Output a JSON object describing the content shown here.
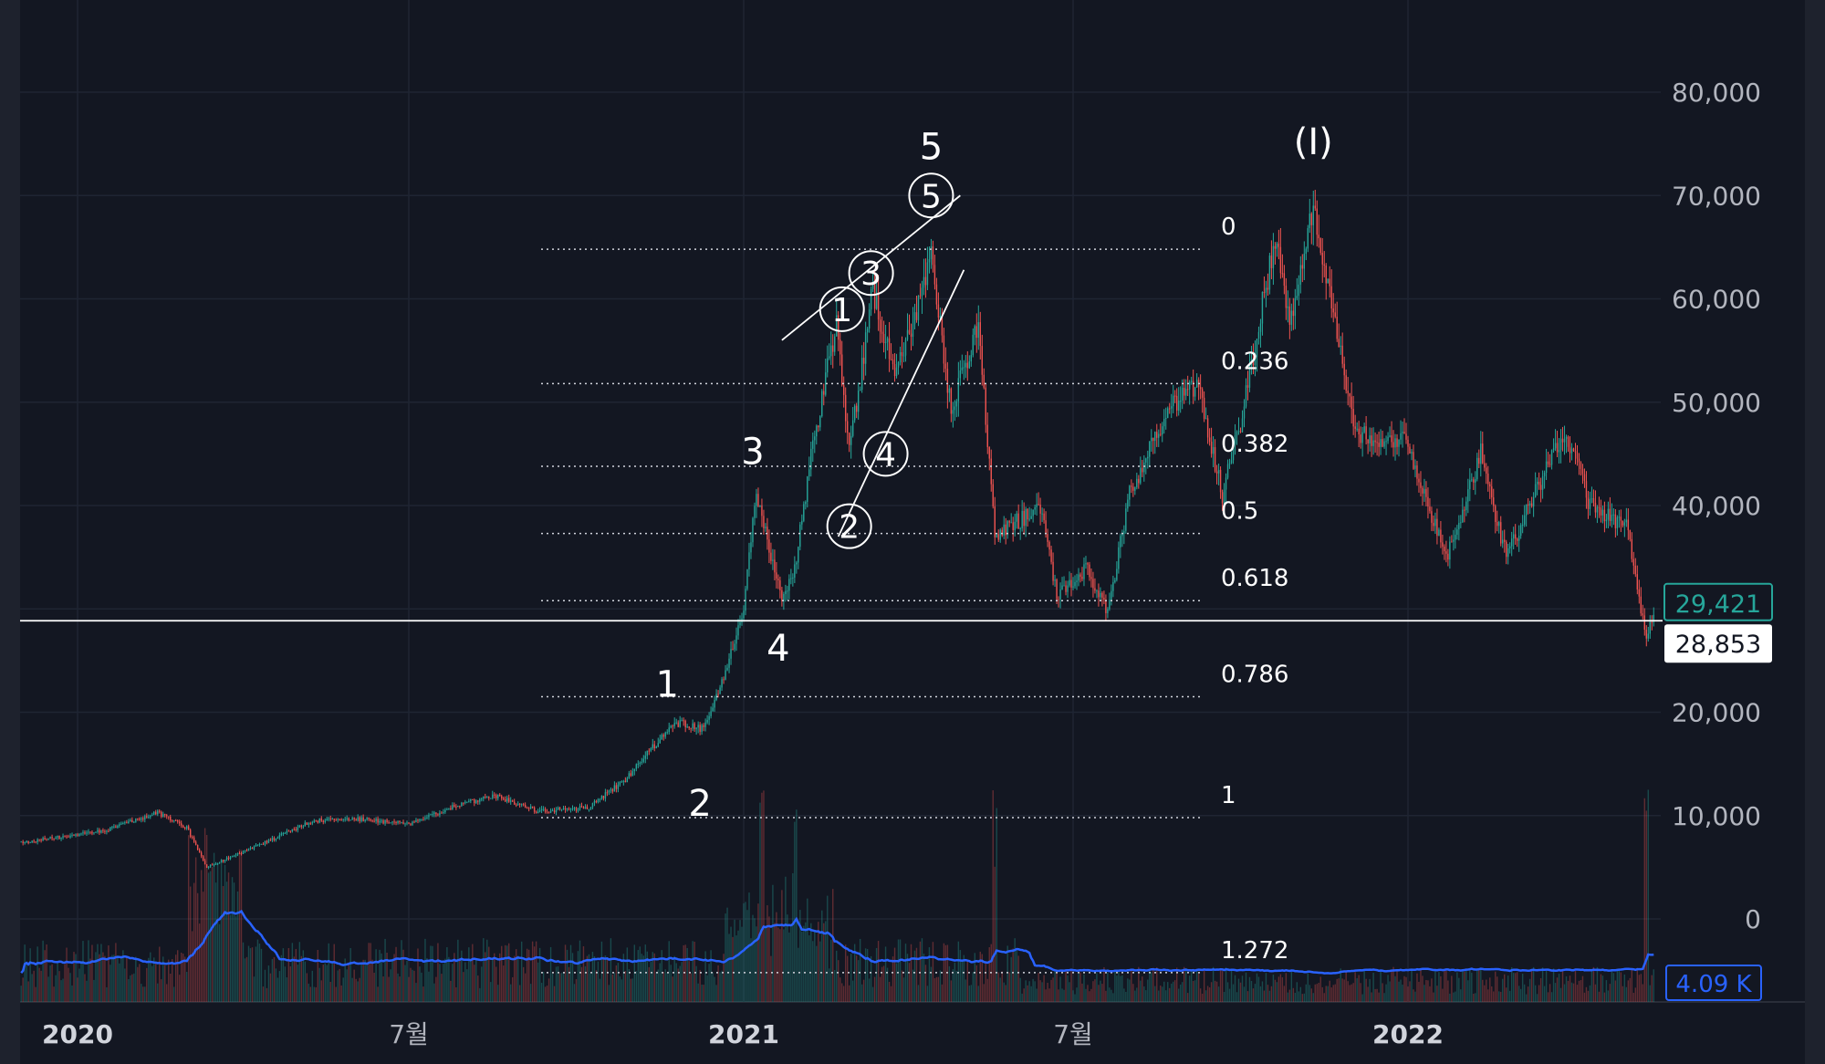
{
  "chart_data": {
    "type": "candlestick",
    "title": "",
    "xlabel": "",
    "ylabel": "",
    "ylim": [
      0,
      80000
    ],
    "grid": true,
    "y_ticks": [
      "80,000",
      "70,000",
      "60,000",
      "50,000",
      "40,000",
      "20,000",
      "10,000",
      "0"
    ],
    "y_tick_values": [
      80000,
      70000,
      60000,
      50000,
      40000,
      20000,
      10000,
      0
    ],
    "x_ticks": [
      {
        "label": "2020",
        "date": "2020-01-01",
        "bold": true
      },
      {
        "label": "7월",
        "date": "2020-07-01",
        "bold": false
      },
      {
        "label": "2021",
        "date": "2021-01-01",
        "bold": true
      },
      {
        "label": "7월",
        "date": "2021-07-01",
        "bold": false
      },
      {
        "label": "2022",
        "date": "2022-01-01",
        "bold": true
      }
    ],
    "price_path": [
      [
        "2019-12-01",
        7400
      ],
      [
        "2020-01-15",
        8500
      ],
      [
        "2020-02-14",
        10300
      ],
      [
        "2020-03-01",
        8800
      ],
      [
        "2020-03-12",
        5000
      ],
      [
        "2020-04-05",
        6800
      ],
      [
        "2020-05-10",
        9500
      ],
      [
        "2020-06-01",
        9700
      ],
      [
        "2020-07-01",
        9200
      ],
      [
        "2020-07-28",
        11000
      ],
      [
        "2020-08-17",
        12000
      ],
      [
        "2020-09-10",
        10400
      ],
      [
        "2020-10-08",
        10800
      ],
      [
        "2020-10-28",
        13500
      ],
      [
        "2020-11-24",
        19000
      ],
      [
        "2020-12-10",
        18300
      ],
      [
        "2020-12-20",
        23000
      ],
      [
        "2020-12-31",
        29000
      ],
      [
        "2021-01-08",
        41000
      ],
      [
        "2021-01-22",
        31000
      ],
      [
        "2021-01-29",
        34000
      ],
      [
        "2021-02-08",
        46000
      ],
      [
        "2021-02-21",
        57500
      ],
      [
        "2021-02-28",
        45000
      ],
      [
        "2021-03-13",
        61000
      ],
      [
        "2021-03-25",
        52000
      ],
      [
        "2021-04-14",
        64000
      ],
      [
        "2021-04-25",
        49000
      ],
      [
        "2021-05-10",
        58000
      ],
      [
        "2021-05-19",
        37000
      ],
      [
        "2021-06-14",
        40000
      ],
      [
        "2021-06-22",
        31000
      ],
      [
        "2021-07-08",
        34000
      ],
      [
        "2021-07-20",
        29800
      ],
      [
        "2021-08-01",
        41000
      ],
      [
        "2021-08-22",
        49500
      ],
      [
        "2021-09-07",
        52000
      ],
      [
        "2021-09-21",
        41000
      ],
      [
        "2021-10-01",
        48000
      ],
      [
        "2021-10-20",
        66000
      ],
      [
        "2021-10-28",
        58000
      ],
      [
        "2021-11-10",
        69000
      ],
      [
        "2021-11-26",
        53500
      ],
      [
        "2021-12-04",
        47000
      ],
      [
        "2021-12-31",
        46300
      ],
      [
        "2022-01-22",
        35000
      ],
      [
        "2022-02-10",
        45000
      ],
      [
        "2022-02-24",
        35000
      ],
      [
        "2022-03-28",
        47500
      ],
      [
        "2022-04-11",
        40000
      ],
      [
        "2022-05-01",
        38000
      ],
      [
        "2022-05-09",
        30000
      ],
      [
        "2022-05-12",
        26800
      ],
      [
        "2022-05-16",
        29421
      ]
    ],
    "last_price": "29,421",
    "crosshair_price": "28,853",
    "crosshair_value": 28853,
    "volume_label": "4.09 K",
    "fibonacci": [
      {
        "label": "0",
        "price": 64800
      },
      {
        "label": "0.236",
        "price": 51800
      },
      {
        "label": "0.382",
        "price": 43800
      },
      {
        "label": "0.5",
        "price": 37300
      },
      {
        "label": "0.618",
        "price": 30800
      },
      {
        "label": "0.786",
        "price": 21500
      },
      {
        "label": "1",
        "price": 9800
      },
      {
        "label": "1.272",
        "price": -5200
      }
    ],
    "wave_labels": [
      {
        "text": "1",
        "date": "2020-11-20",
        "price": 21500
      },
      {
        "text": "2",
        "date": "2020-12-08",
        "price": 10000
      },
      {
        "text": "3",
        "date": "2021-01-06",
        "price": 44000
      },
      {
        "text": "4",
        "date": "2021-01-20",
        "price": 25000
      },
      {
        "text": "5",
        "date": "2021-04-14",
        "price": 73500
      },
      {
        "text": "(I)",
        "date": "2021-11-10",
        "price": 74000
      }
    ],
    "circled_labels": [
      {
        "text": "1",
        "date": "2021-02-24",
        "price": 59000
      },
      {
        "text": "2",
        "date": "2021-02-28",
        "price": 38000
      },
      {
        "text": "3",
        "date": "2021-03-12",
        "price": 62500
      },
      {
        "text": "4",
        "date": "2021-03-20",
        "price": 45000
      },
      {
        "text": "5",
        "date": "2021-04-14",
        "price": 70000
      }
    ],
    "trendlines": [
      {
        "from": {
          "date": "2021-01-22",
          "price": 56000
        },
        "to": {
          "date": "2021-04-30",
          "price": 70000
        }
      },
      {
        "from": {
          "date": "2021-02-22",
          "price": 37000
        },
        "to": {
          "date": "2021-05-02",
          "price": 62800
        }
      }
    ]
  },
  "colors": {
    "background": "#131722",
    "grid": "#1f2533",
    "up": "#26a69a",
    "down": "#ef5350",
    "volume_ma": "#2962ff",
    "axis_text": "#b2b5be",
    "fib_line": "#d1d4dc",
    "annotation": "#ffffff"
  }
}
